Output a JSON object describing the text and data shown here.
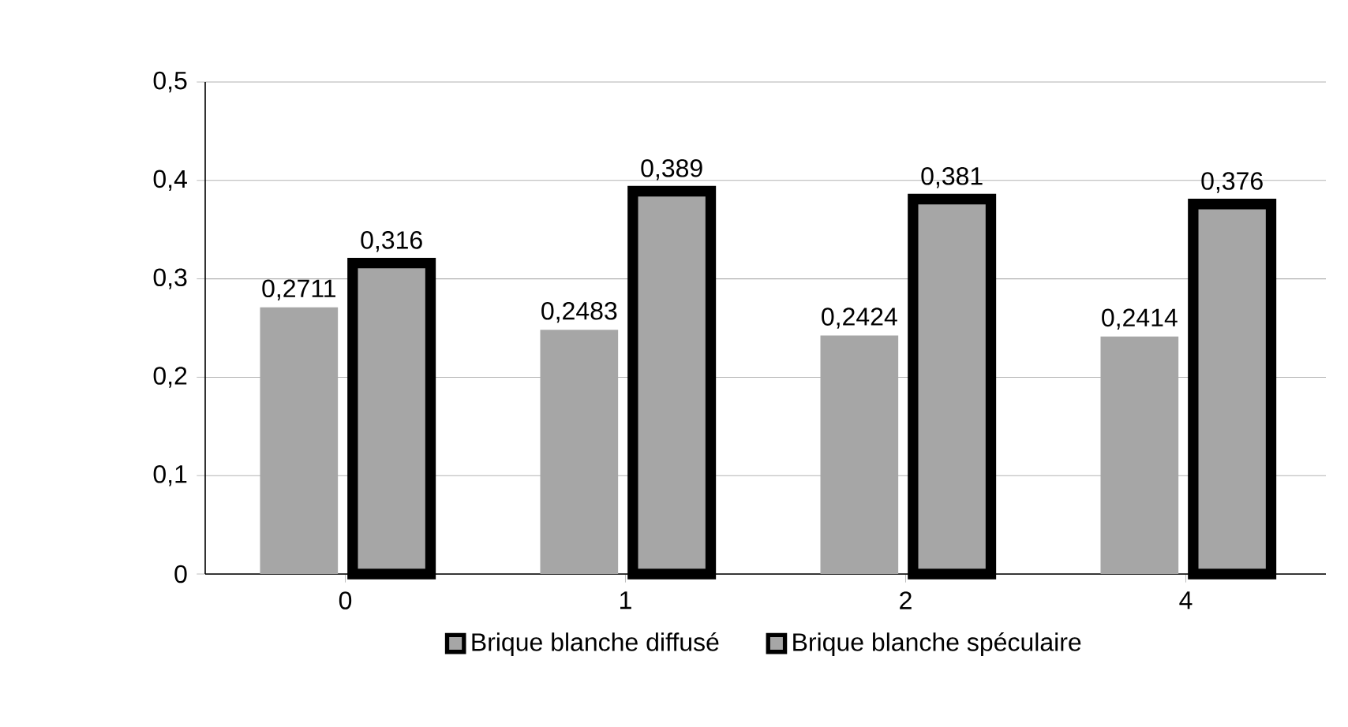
{
  "chart_data": {
    "type": "bar",
    "categories": [
      "0",
      "1",
      "2",
      "4"
    ],
    "series": [
      {
        "name": "Brique blanche  diffusé",
        "color": "#a6a6a6",
        "values": [
          0.2711,
          0.2483,
          0.2424,
          0.2414
        ],
        "value_labels": [
          "0,2711",
          "0,2483",
          "0,2424",
          "0,2414"
        ]
      },
      {
        "name": "Brique blanche spéculaire",
        "color": "#000000",
        "values": [
          0.316,
          0.389,
          0.381,
          0.376
        ],
        "value_labels": [
          "0,316",
          "0,389",
          "0,381",
          "0,376"
        ]
      }
    ],
    "ylim": [
      0,
      0.5
    ],
    "yticks": [
      {
        "value": 0,
        "label": "0"
      },
      {
        "value": 0.1,
        "label": "0,1"
      },
      {
        "value": 0.2,
        "label": "0,2"
      },
      {
        "value": 0.3,
        "label": "0,3"
      },
      {
        "value": 0.4,
        "label": "0,4"
      },
      {
        "value": 0.5,
        "label": "0,5"
      }
    ],
    "grid": "y",
    "legend": "bottom"
  }
}
